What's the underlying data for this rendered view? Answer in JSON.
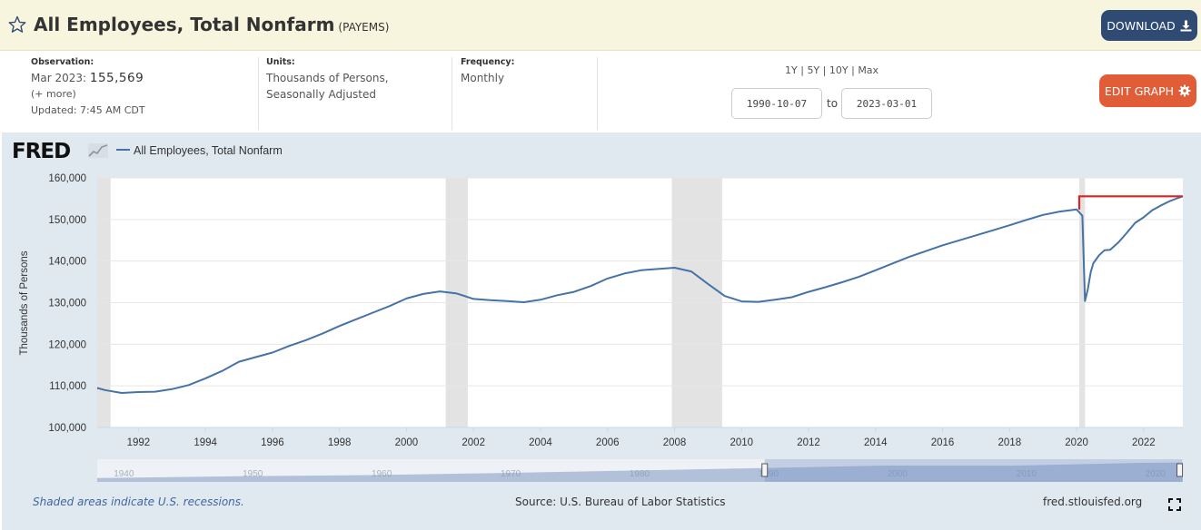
{
  "header": {
    "title": "All Employees, Total Nonfarm",
    "series_code": "(PAYEMS)",
    "download_label": "DOWNLOAD",
    "icons": {
      "favorite": "star-icon",
      "download": "download-icon"
    }
  },
  "meta": {
    "observation": {
      "label": "Observation:",
      "date": "Mar 2023:",
      "value": "155,569",
      "more": "(+ more)",
      "updated": "Updated: 7:45 AM CDT"
    },
    "units": {
      "label": "Units:",
      "line1": "Thousands of Persons,",
      "line2": "Seasonally Adjusted"
    },
    "frequency": {
      "label": "Frequency:",
      "value": "Monthly"
    },
    "ranges": {
      "r1y": "1Y",
      "r5y": "5Y",
      "r10y": "10Y",
      "rmax": "Max",
      "sep": "|"
    },
    "start_date": "1990-10-07",
    "to_label": "to",
    "end_date": "2023-03-01",
    "edit_label": "EDIT GRAPH",
    "edit_icon": "gear-icon"
  },
  "footer": {
    "note": "Shaded areas indicate U.S. recessions.",
    "source": "Source: U.S. Bureau of Labor Statistics",
    "site": "fred.stlouisfed.org",
    "fullscreen_icon": "fullscreen-icon"
  },
  "colors": {
    "line": "#4572a7",
    "recession": "#e3e3e3",
    "plot_bg": "#ffffff",
    "chart_bg": "#e1e9f0",
    "highlight": "#dd2222"
  },
  "chart_data": {
    "type": "line",
    "logo": "FRED",
    "legend": "All Employees, Total Nonfarm",
    "ylabel": "Thousands of Persons",
    "xlim": [
      1990.77,
      2023.17
    ],
    "ylim": [
      100000,
      160000
    ],
    "yticks": [
      100000,
      110000,
      120000,
      130000,
      140000,
      150000,
      160000
    ],
    "ytick_labels": [
      "100,000",
      "110,000",
      "120,000",
      "130,000",
      "140,000",
      "150,000",
      "160,000"
    ],
    "xticks": [
      1992,
      1994,
      1996,
      1998,
      2000,
      2002,
      2004,
      2006,
      2008,
      2010,
      2012,
      2014,
      2016,
      2018,
      2020,
      2022
    ],
    "xtick_labels": [
      "1992",
      "1994",
      "1996",
      "1998",
      "2000",
      "2002",
      "2004",
      "2006",
      "2008",
      "2010",
      "2012",
      "2014",
      "2016",
      "2018",
      "2020",
      "2022"
    ],
    "recessions": [
      [
        1990.77,
        1991.17
      ],
      [
        2001.17,
        2001.83
      ],
      [
        2007.92,
        2009.42
      ],
      [
        2020.08,
        2020.25
      ]
    ],
    "series": [
      {
        "name": "All Employees, Total Nonfarm",
        "x": [
          1990.77,
          1991.0,
          1991.5,
          1992.0,
          1992.5,
          1993.0,
          1993.5,
          1994.0,
          1994.5,
          1995.0,
          1995.5,
          1996.0,
          1996.5,
          1997.0,
          1997.5,
          1998.0,
          1998.5,
          1999.0,
          1999.5,
          2000.0,
          2000.5,
          2001.0,
          2001.5,
          2002.0,
          2002.5,
          2003.0,
          2003.5,
          2004.0,
          2004.5,
          2005.0,
          2005.5,
          2006.0,
          2006.5,
          2007.0,
          2007.5,
          2008.0,
          2008.5,
          2009.0,
          2009.5,
          2010.0,
          2010.5,
          2011.0,
          2011.5,
          2012.0,
          2012.5,
          2013.0,
          2013.5,
          2014.0,
          2014.5,
          2015.0,
          2015.5,
          2016.0,
          2016.5,
          2017.0,
          2017.5,
          2018.0,
          2018.5,
          2019.0,
          2019.5,
          2020.0,
          2020.17,
          2020.25,
          2020.33,
          2020.42,
          2020.5,
          2020.67,
          2020.83,
          2021.0,
          2021.25,
          2021.5,
          2021.75,
          2022.0,
          2022.25,
          2022.5,
          2022.75,
          2023.0,
          2023.17
        ],
        "values": [
          109500,
          109000,
          108300,
          108500,
          108600,
          109200,
          110200,
          111800,
          113600,
          115800,
          116900,
          118000,
          119600,
          121000,
          122600,
          124400,
          126000,
          127600,
          129200,
          131000,
          132100,
          132700,
          132200,
          130900,
          130600,
          130400,
          130100,
          130700,
          131800,
          132600,
          134000,
          135800,
          137000,
          137800,
          138100,
          138400,
          137500,
          134500,
          131600,
          130300,
          130200,
          130700,
          131300,
          132600,
          133700,
          134900,
          136200,
          137800,
          139400,
          141000,
          142400,
          143800,
          145000,
          146200,
          147400,
          148600,
          149900,
          151100,
          151900,
          152400,
          150900,
          130400,
          133100,
          137300,
          139500,
          141400,
          142600,
          142700,
          144500,
          146800,
          149200,
          150500,
          152200,
          153300,
          154300,
          155100,
          155569
        ]
      }
    ],
    "highlight": {
      "from_x": 2020.08,
      "to_x": 2023.17,
      "value": 155569,
      "base_value": 152400
    },
    "navigator": {
      "labels": [
        "1940",
        "1950",
        "1960",
        "1970",
        "1980",
        "1990",
        "2000",
        "2010",
        "2020"
      ],
      "label_years": [
        1940,
        1950,
        1960,
        1970,
        1980,
        1990,
        2000,
        2010,
        2020
      ],
      "range_years": [
        1939,
        2023.2
      ],
      "selected": [
        1990.77,
        2023.17
      ]
    }
  }
}
